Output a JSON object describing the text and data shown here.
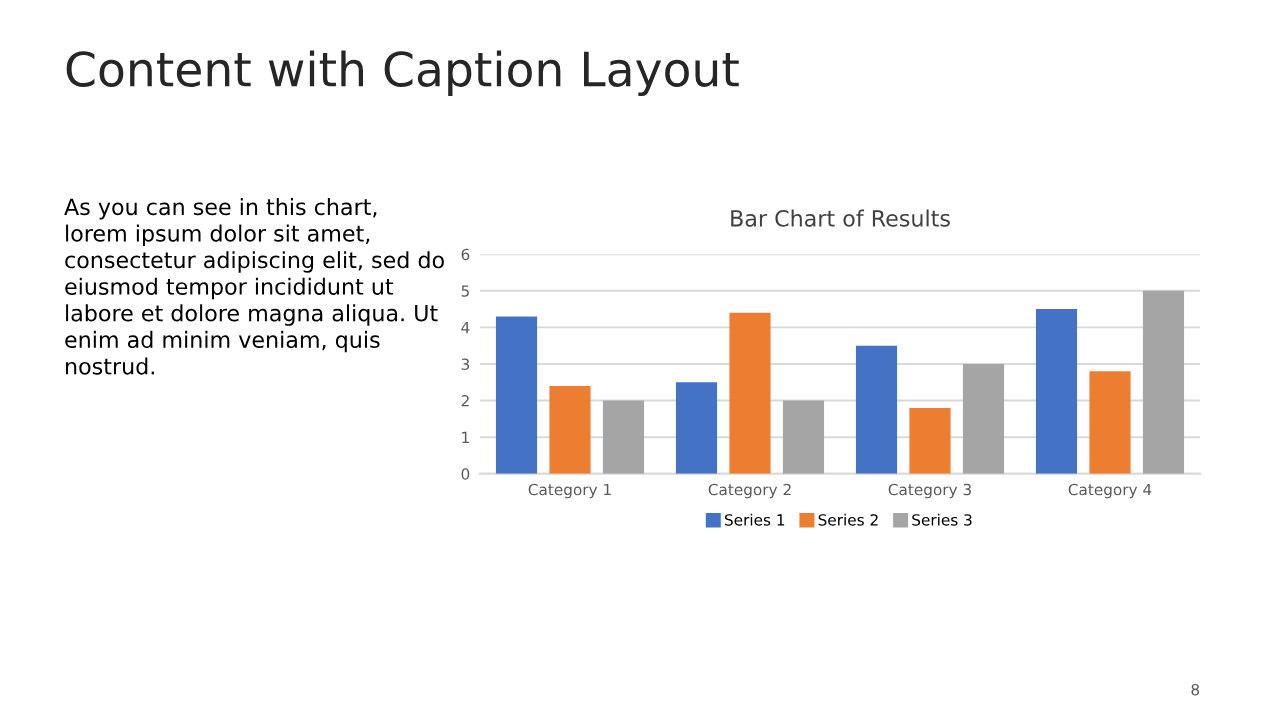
{
  "chart_data": {
    "type": "bar",
    "title": "Bar Chart of Results",
    "categories": [
      "Category 1",
      "Category 2",
      "Category 3",
      "Category 4"
    ],
    "series": [
      {
        "name": "Series 1",
        "color": "#4472c4",
        "values": [
          4.3,
          2.5,
          3.5,
          4.5
        ]
      },
      {
        "name": "Series 2",
        "color": "#ed7d31",
        "values": [
          2.4,
          4.4,
          1.8,
          2.8
        ]
      },
      {
        "name": "Series 3",
        "color": "#a5a5a5",
        "values": [
          2,
          2,
          3,
          5
        ]
      }
    ],
    "ylim": [
      0,
      6
    ],
    "yticks": [
      0,
      1,
      2,
      3,
      4,
      5,
      6
    ],
    "grid": "y",
    "legend": "bottom",
    "annotations": [
      "Content with Caption Layout",
      "As you can see in this chart,\nlorem ipsum dolor sit amet,\nconsectetur adipiscing elit, sed do\neiusmod tempor incididunt ut\nlabore et dolore magna aliqua. Ut\nenim ad minim veniam, quis\nnostrud.",
      "8"
    ]
  }
}
